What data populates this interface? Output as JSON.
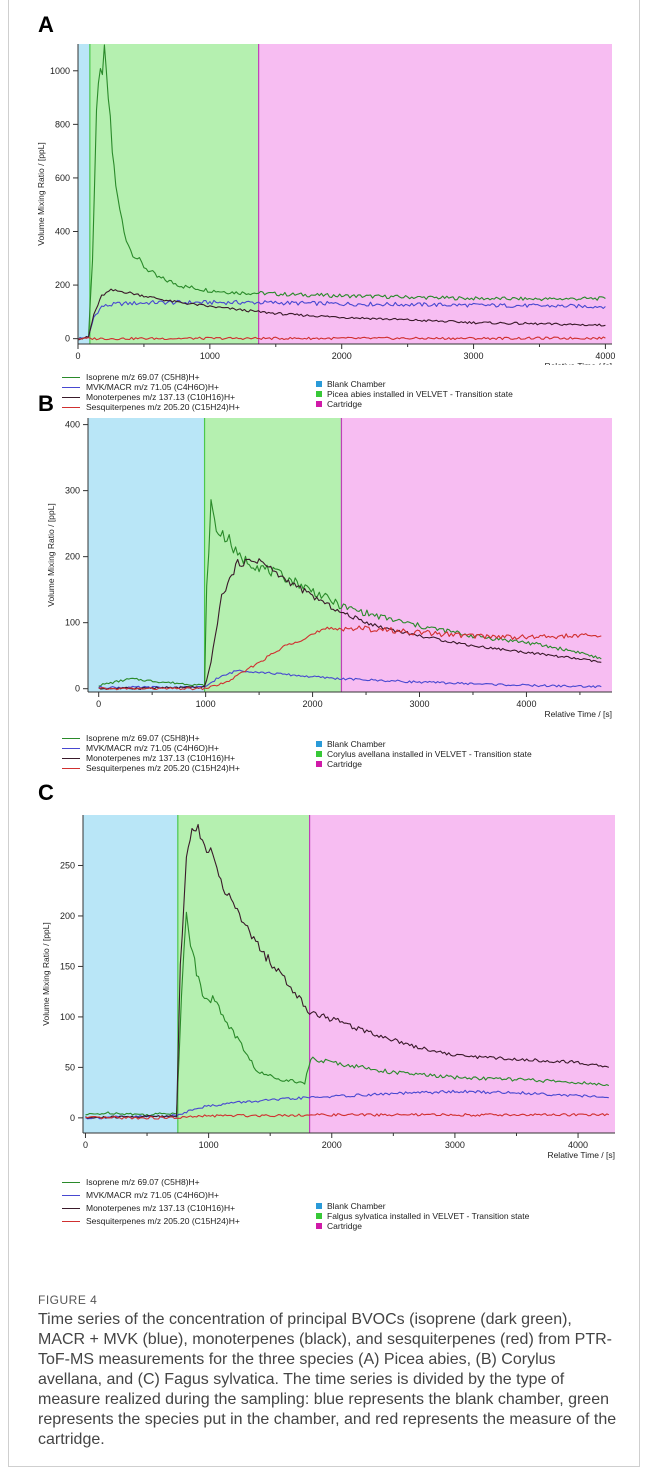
{
  "figure": {
    "label": "FIGURE 4",
    "caption": "Time series of the concentration of principal BVOCs (isoprene (dark green), MACR + MVK (blue), monoterpenes (black), and sesquiterpenes (red) from PTR-ToF-MS measurements for the three species (A) Picea abies, (B) Corylus avellana, and (C) Fagus sylvatica. The time series is divided by the type of measure realized during the sampling: blue represents the blank chamber, green represents the species put in the chamber, and red represents the measure of the cartridge."
  },
  "colors": {
    "isoprene": "#2a8a2a",
    "mvk": "#4848d0",
    "monoterpenes": "#3a1a2a",
    "sesquiterpenes": "#d03030",
    "blank_bg": "#b9e6f7",
    "species_bg": "#b5f0b0",
    "cartridge_bg": "#f7bdf2",
    "blank_key": "#2a9ad8",
    "species_key": "#37c837",
    "cartridge_key": "#d01aa8"
  },
  "chart_data": [
    {
      "panel": "A",
      "type": "line",
      "xlabel": "Relative Time / [s]",
      "ylabel": "Volume Mixing Ratio / [ppL]",
      "xlim": [
        0,
        4050
      ],
      "ylim": [
        -20,
        1100
      ],
      "xticks": [
        0,
        1000,
        2000,
        3000,
        4000
      ],
      "yticks": [
        0,
        200,
        400,
        600,
        800,
        1000
      ],
      "phases": [
        {
          "name": "Blank Chamber",
          "start": 0,
          "end": 90
        },
        {
          "name": "Picea abies installed in VELVET - Transition state",
          "start": 90,
          "end": 1370
        },
        {
          "name": "Cartridge",
          "start": 1370,
          "end": 4050
        }
      ],
      "series": [
        {
          "name": "Isoprene m/z 69.07 (C5H8)H+",
          "x": [
            0,
            80,
            110,
            140,
            170,
            200,
            230,
            260,
            300,
            350,
            400,
            500,
            600,
            800,
            1000,
            1200,
            1370,
            1600,
            2000,
            2500,
            3000,
            3500,
            4000
          ],
          "values": [
            0,
            5,
            300,
            850,
            980,
            1050,
            900,
            700,
            520,
            400,
            330,
            270,
            230,
            195,
            180,
            172,
            170,
            165,
            160,
            155,
            150,
            148,
            150
          ]
        },
        {
          "name": "MVK/MACR m/z 71.05 (C4H6O)H+",
          "x": [
            0,
            80,
            120,
            180,
            300,
            600,
            1000,
            1370,
            2000,
            3000,
            4000
          ],
          "values": [
            0,
            5,
            80,
            120,
            130,
            135,
            135,
            135,
            130,
            125,
            120
          ]
        },
        {
          "name": "Monoterpenes m/z 137.13 (C10H16)H+",
          "x": [
            0,
            80,
            120,
            180,
            250,
            350,
            500,
            700,
            1000,
            1370,
            1600,
            2000,
            2500,
            3000,
            3500,
            4000
          ],
          "values": [
            0,
            5,
            90,
            160,
            180,
            175,
            160,
            140,
            120,
            100,
            90,
            80,
            70,
            60,
            55,
            50
          ]
        },
        {
          "name": "Sesquiterpenes m/z 205.20 (C15H24)H+",
          "x": [
            0,
            1000,
            2000,
            3000,
            4000
          ],
          "values": [
            0,
            1,
            1,
            1,
            2
          ]
        }
      ]
    },
    {
      "panel": "B",
      "type": "line",
      "xlabel": "Relative Time / [s]",
      "ylabel": "Volume Mixing Ratio / [ppL]",
      "xlim": [
        -100,
        4800
      ],
      "ylim": [
        -5,
        410
      ],
      "xticks": [
        0,
        1000,
        2000,
        3000,
        4000
      ],
      "yticks": [
        0,
        100,
        200,
        300,
        400
      ],
      "phases": [
        {
          "name": "Blank Chamber",
          "start": -100,
          "end": 990
        },
        {
          "name": "Corylus avellana installed in VELVET - Transition state",
          "start": 990,
          "end": 2270
        },
        {
          "name": "Cartridge",
          "start": 2270,
          "end": 4800
        }
      ],
      "series": [
        {
          "name": "Isoprene m/z 69.07 (C5H8)H+",
          "x": [
            0,
            300,
            600,
            990,
            1010,
            1050,
            1100,
            1200,
            1300,
            1500,
            1800,
            2100,
            2270,
            2600,
            3000,
            3500,
            4000,
            4500,
            4700
          ],
          "values": [
            5,
            15,
            10,
            5,
            150,
            280,
            240,
            230,
            200,
            185,
            165,
            140,
            125,
            110,
            95,
            80,
            70,
            55,
            45
          ]
        },
        {
          "name": "MVK/MACR m/z 71.05 (C4H6O)H+",
          "x": [
            0,
            990,
            1100,
            1300,
            1500,
            2000,
            2270,
            3000,
            4000,
            4700
          ],
          "values": [
            2,
            2,
            15,
            28,
            25,
            18,
            15,
            10,
            5,
            3
          ]
        },
        {
          "name": "Monoterpenes m/z 137.13 (C10H16)H+",
          "x": [
            0,
            990,
            1050,
            1150,
            1300,
            1500,
            1700,
            2000,
            2270,
            2600,
            3000,
            3500,
            4000,
            4500,
            4700
          ],
          "values": [
            0,
            2,
            40,
            140,
            190,
            195,
            170,
            140,
            115,
            95,
            80,
            65,
            55,
            45,
            40
          ]
        },
        {
          "name": "Sesquiterpenes m/z 205.20 (C15H24)H+",
          "x": [
            0,
            990,
            1200,
            1500,
            1800,
            2100,
            2270,
            2600,
            3000,
            3500,
            4000,
            4500,
            4700
          ],
          "values": [
            0,
            0,
            10,
            40,
            70,
            88,
            92,
            90,
            85,
            80,
            78,
            80,
            80
          ]
        }
      ]
    },
    {
      "panel": "C",
      "type": "line",
      "xlabel": "Relative Time / [s]",
      "ylabel": "Volume Mixing Ratio / [ppL]",
      "xlim": [
        -20,
        4300
      ],
      "ylim": [
        -15,
        300
      ],
      "xticks": [
        0,
        1000,
        2000,
        3000,
        4000
      ],
      "yticks": [
        0,
        50,
        100,
        150,
        200,
        250
      ],
      "phases": [
        {
          "name": "Blank Chamber",
          "start": -20,
          "end": 750
        },
        {
          "name": "Falgus sylvatica installed in VELVET - Transition state",
          "start": 750,
          "end": 1820
        },
        {
          "name": "Cartridge",
          "start": 1820,
          "end": 4300
        }
      ],
      "series": [
        {
          "name": "Isoprene m/z 69.07 (C5H8)H+",
          "x": [
            0,
            200,
            500,
            740,
            780,
            820,
            870,
            950,
            1050,
            1200,
            1400,
            1600,
            1780,
            1830,
            2000,
            2500,
            3000,
            3500,
            4000,
            4250
          ],
          "values": [
            3,
            5,
            3,
            5,
            120,
            205,
            160,
            125,
            115,
            85,
            45,
            38,
            35,
            58,
            55,
            45,
            40,
            38,
            35,
            32
          ]
        },
        {
          "name": "MVK/MACR m/z 71.05 (C4H6O)H+",
          "x": [
            0,
            740,
            900,
            1200,
            1800,
            2500,
            3000,
            3500,
            4000,
            4250
          ],
          "values": [
            0,
            2,
            10,
            15,
            20,
            24,
            26,
            25,
            22,
            20
          ]
        },
        {
          "name": "Monoterpenes m/z 137.13 (C10H16)H+",
          "x": [
            0,
            740,
            770,
            820,
            880,
            950,
            1050,
            1200,
            1400,
            1600,
            1820,
            2000,
            2300,
            2700,
            3000,
            3500,
            4000,
            4250
          ],
          "values": [
            0,
            2,
            150,
            260,
            290,
            280,
            250,
            210,
            170,
            140,
            105,
            98,
            85,
            70,
            62,
            58,
            55,
            50
          ]
        },
        {
          "name": "Sesquiterpenes m/z 205.20 (C15H24)H+",
          "x": [
            0,
            740,
            1000,
            2000,
            3000,
            4000,
            4250
          ],
          "values": [
            0,
            0,
            2,
            3,
            3,
            3,
            3
          ]
        }
      ]
    }
  ],
  "panels": [
    {
      "label": "A",
      "series_legend": [
        {
          "text": "Isoprene m/z 69.07 (C5H8)H+"
        },
        {
          "text": "MVK/MACR m/z 71.05 (C4H6O)H+"
        },
        {
          "text": "Monoterpenes m/z 137.13 (C10H16)H+"
        },
        {
          "text": "Sesquiterpenes m/z 205.20 (C15H24)H+"
        }
      ],
      "phase_legend": [
        "Blank Chamber",
        "Picea abies installed in VELVET - Transition state",
        "Cartridge"
      ]
    },
    {
      "label": "B",
      "series_legend": [
        {
          "text": "Isoprene m/z 69.07 (C5H8)H+"
        },
        {
          "text": "MVK/MACR m/z 71.05 (C4H6O)H+"
        },
        {
          "text": "Monoterpenes m/z 137.13 (C10H16)H+"
        },
        {
          "text": "Sesquiterpenes m/z 205.20 (C15H24)H+"
        }
      ],
      "phase_legend": [
        "Blank Chamber",
        "Corylus avellana installed in VELVET - Transition state",
        "Cartridge"
      ]
    },
    {
      "label": "C",
      "series_legend": [
        {
          "text": "Isoprene m/z 69.07 (C5H8)H+"
        },
        {
          "text": "MVK/MACR m/z 71.05 (C4H6O)H+"
        },
        {
          "text": "Monoterpenes m/z 137.13 (C10H16)H+"
        },
        {
          "text": "Sesquiterpenes m/z 205.20 (C15H24)H+"
        }
      ],
      "phase_legend": [
        "Blank Chamber",
        "Falgus sylvatica installed in VELVET - Transition state",
        "Cartridge"
      ]
    }
  ]
}
